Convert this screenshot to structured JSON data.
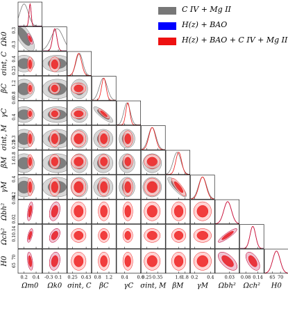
{
  "chart_data": {
    "type": "corner",
    "parameters": [
      {
        "key": "Om",
        "label": "Ωm0",
        "range": [
          0.1,
          0.5
        ],
        "ticks": [
          0.2,
          0.4
        ]
      },
      {
        "key": "Ok",
        "label": "Ωk0",
        "range": [
          -0.55,
          0.45
        ],
        "ticks": [
          -0.3,
          0.1
        ]
      },
      {
        "key": "sigC",
        "label": "σint, C",
        "range": [
          0.18,
          0.5
        ],
        "ticks": [
          0.25,
          0.43
        ]
      },
      {
        "key": "betaC",
        "label": "βC",
        "range": [
          0.6,
          1.45
        ],
        "ticks": [
          0.8,
          1.2
        ]
      },
      {
        "key": "gammaC",
        "label": "γC",
        "range": [
          0.3,
          0.6
        ],
        "ticks": [
          0.4,
          0.6
        ]
      },
      {
        "key": "sigM",
        "label": "σint, M",
        "range": [
          0.2,
          0.42
        ],
        "ticks": [
          0.25,
          0.35
        ]
      },
      {
        "key": "betaM",
        "label": "βM",
        "range": [
          1.2,
          1.95
        ],
        "ticks": [
          1.6,
          1.8
        ]
      },
      {
        "key": "gammaM",
        "label": "γM",
        "range": [
          0.15,
          0.45
        ],
        "ticks": [
          0.2,
          0.4
        ]
      },
      {
        "key": "Obh2",
        "label": "Ωbh²",
        "range": [
          0.015,
          0.04
        ],
        "ticks": [
          0.03
        ]
      },
      {
        "key": "Och2",
        "label": "Ωch²",
        "range": [
          0.05,
          0.17
        ],
        "ticks": [
          0.08,
          0.14
        ]
      },
      {
        "key": "H0",
        "label": "H0",
        "range": [
          60,
          75
        ],
        "ticks": [
          65,
          70
        ]
      }
    ],
    "y_ticks_left": {
      "Ok": [
        -0.3,
        0.3
      ],
      "sigC": [
        0.25,
        0.4
      ],
      "betaC": [
        0.8,
        1.2
      ],
      "gammaC": [
        0.4,
        0.6
      ],
      "sigM": [
        0.25,
        0.3
      ],
      "betaM": [
        1.6,
        1.8
      ],
      "gammaM": [
        0.2,
        0.4
      ],
      "Obh2": [
        0.02,
        0.04
      ],
      "Och2": [
        0.1,
        0.14
      ],
      "H0": [
        65,
        70
      ]
    },
    "datasets": [
      {
        "name": "C IV + Mg II",
        "color": "#777777",
        "fill_light": "#c9c9c9",
        "fill_dark": "#6e6e6e",
        "means": {
          "Om": 0.2,
          "Ok": 0.05,
          "sigC": 0.34,
          "betaC": 1.0,
          "gammaC": 0.43,
          "sigM": 0.3,
          "betaM": 1.55,
          "gammaM": 0.3
        },
        "sigmas": {
          "Om": 0.07,
          "Ok": 0.25,
          "sigC": 0.045,
          "betaC": 0.14,
          "gammaC": 0.04,
          "sigM": 0.035,
          "betaM": 0.12,
          "gammaM": 0.05
        }
      },
      {
        "name": "H(z) + BAO",
        "color": "#0000ff",
        "fill_light": "#aaaaff",
        "fill_dark": "#0000ff",
        "means": {
          "Om": 0.3,
          "Ok": -0.05,
          "Obh2": 0.028,
          "Och2": 0.115,
          "H0": 67.5
        },
        "sigmas": {
          "Om": 0.018,
          "Ok": 0.09,
          "Obh2": 0.004,
          "Och2": 0.014,
          "H0": 2.3
        }
      },
      {
        "name": "H(z) + BAO + C IV + Mg II",
        "color": "#ee1111",
        "fill_light": "#ffc4c4",
        "fill_dark": "#ee2222",
        "means": {
          "Om": 0.3,
          "Ok": -0.05,
          "sigC": 0.33,
          "betaC": 1.02,
          "gammaC": 0.44,
          "sigM": 0.3,
          "betaM": 1.6,
          "gammaM": 0.3,
          "Obh2": 0.028,
          "Och2": 0.115,
          "H0": 67.5
        },
        "sigmas": {
          "Om": 0.018,
          "Ok": 0.09,
          "sigC": 0.04,
          "betaC": 0.08,
          "gammaC": 0.025,
          "sigM": 0.03,
          "betaM": 0.09,
          "gammaM": 0.045,
          "Obh2": 0.004,
          "Och2": 0.014,
          "H0": 2.3
        }
      }
    ],
    "correlations": {
      "Om|Ok": -0.7,
      "betaC|gammaC": -0.85,
      "betaM|gammaM": -0.85,
      "Obh2|Och2": 0.9,
      "Obh2|H0": -0.6,
      "Och2|H0": -0.55,
      "Om|Obh2": 0.5,
      "Om|Och2": 0.6,
      "Om|H0": -0.4,
      "Ok|Obh2": 0.3,
      "Ok|Och2": 0.4,
      "Ok|H0": 0.2
    },
    "legend": {
      "position": "top-right"
    },
    "grid": false
  },
  "legend": [
    {
      "label": "C IV + Mg II",
      "color": "#777777"
    },
    {
      "label": "H(z) + BAO",
      "color": "#0000ff"
    },
    {
      "label": "H(z) + BAO + C IV + Mg II",
      "color": "#ee1111"
    }
  ]
}
